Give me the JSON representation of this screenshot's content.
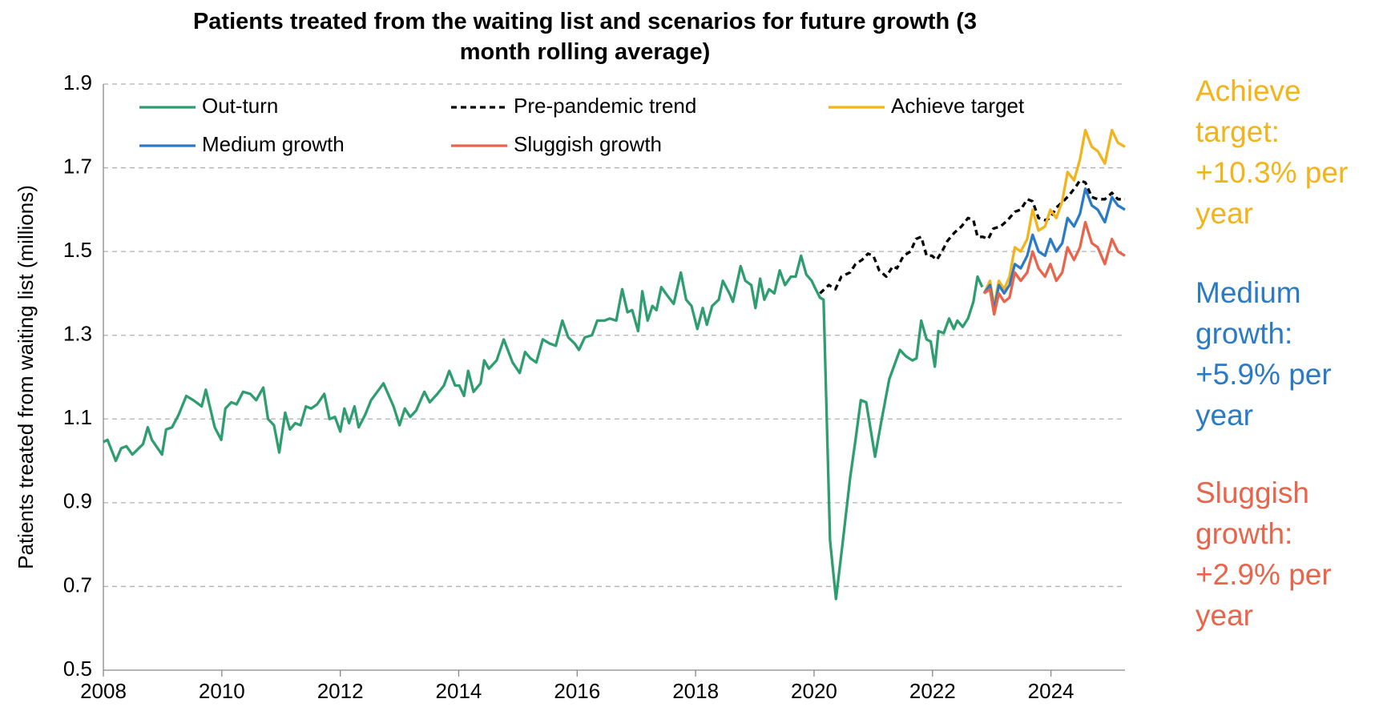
{
  "chart_data": {
    "type": "line",
    "title": "Patients treated from the waiting list and scenarios for future growth (3 month rolling average)",
    "y_label": "Patients treated from waiting list (millions)",
    "xlim": [
      2008,
      2025.25
    ],
    "xticks": [
      2008,
      2010,
      2012,
      2014,
      2016,
      2018,
      2020,
      2022,
      2024
    ],
    "ylim": [
      0.5,
      1.9
    ],
    "yticks": [
      0.5,
      0.7,
      0.9,
      1.1,
      1.3,
      1.5,
      1.7,
      1.9
    ],
    "grid": true,
    "legend": "top-left",
    "series": [
      {
        "name": "Out-turn",
        "color": "#2e9d6f",
        "linestyle": "solid",
        "x": [
          2008.0,
          2008.07,
          2008.21,
          2008.3,
          2008.39,
          2008.49,
          2008.67,
          2008.75,
          2008.82,
          2008.99,
          2009.06,
          2009.16,
          2009.27,
          2009.4,
          2009.52,
          2009.66,
          2009.73,
          2009.88,
          2009.99,
          2010.06,
          2010.16,
          2010.25,
          2010.36,
          2010.48,
          2010.58,
          2010.7,
          2010.78,
          2010.88,
          2010.97,
          2011.07,
          2011.15,
          2011.24,
          2011.33,
          2011.42,
          2011.51,
          2011.61,
          2011.73,
          2011.82,
          2011.91,
          2012.0,
          2012.07,
          2012.15,
          2012.24,
          2012.31,
          2012.42,
          2012.52,
          2012.73,
          2012.9,
          2013.0,
          2013.09,
          2013.18,
          2013.28,
          2013.42,
          2013.51,
          2013.64,
          2013.75,
          2013.84,
          2013.94,
          2014.01,
          2014.09,
          2014.16,
          2014.25,
          2014.37,
          2014.43,
          2014.51,
          2014.64,
          2014.76,
          2014.91,
          2015.03,
          2015.12,
          2015.21,
          2015.31,
          2015.42,
          2015.54,
          2015.64,
          2015.75,
          2015.85,
          2015.96,
          2016.03,
          2016.13,
          2016.25,
          2016.34,
          2016.46,
          2016.55,
          2016.66,
          2016.76,
          2016.85,
          2016.93,
          2017.03,
          2017.1,
          2017.19,
          2017.27,
          2017.34,
          2017.42,
          2017.52,
          2017.63,
          2017.75,
          2017.84,
          2017.93,
          2018.03,
          2018.12,
          2018.19,
          2018.28,
          2018.39,
          2018.46,
          2018.57,
          2018.63,
          2018.76,
          2018.84,
          2018.94,
          2019.01,
          2019.09,
          2019.16,
          2019.24,
          2019.33,
          2019.42,
          2019.51,
          2019.61,
          2019.69,
          2019.78,
          2019.87,
          2019.96,
          2020.01,
          2020.1,
          2020.16,
          2020.27,
          2020.37,
          2020.48,
          2020.61,
          2020.7,
          2020.79,
          2020.88,
          2021.03,
          2021.13,
          2021.27,
          2021.45,
          2021.55,
          2021.66,
          2021.73,
          2021.81,
          2021.9,
          2021.97,
          2022.04,
          2022.1,
          2022.19,
          2022.28,
          2022.36,
          2022.42,
          2022.51,
          2022.6,
          2022.69,
          2022.76,
          2022.84
        ],
        "values": [
          1.045,
          1.05,
          1.0,
          1.03,
          1.035,
          1.015,
          1.04,
          1.08,
          1.05,
          1.015,
          1.075,
          1.08,
          1.11,
          1.155,
          1.145,
          1.13,
          1.17,
          1.08,
          1.05,
          1.125,
          1.14,
          1.135,
          1.165,
          1.16,
          1.145,
          1.175,
          1.1,
          1.085,
          1.02,
          1.115,
          1.075,
          1.09,
          1.085,
          1.13,
          1.125,
          1.135,
          1.16,
          1.1,
          1.105,
          1.07,
          1.125,
          1.09,
          1.13,
          1.08,
          1.11,
          1.145,
          1.185,
          1.13,
          1.085,
          1.125,
          1.105,
          1.12,
          1.165,
          1.14,
          1.16,
          1.18,
          1.215,
          1.18,
          1.18,
          1.155,
          1.215,
          1.165,
          1.185,
          1.24,
          1.22,
          1.24,
          1.29,
          1.235,
          1.21,
          1.26,
          1.245,
          1.235,
          1.29,
          1.28,
          1.275,
          1.335,
          1.295,
          1.28,
          1.265,
          1.295,
          1.3,
          1.335,
          1.335,
          1.34,
          1.335,
          1.41,
          1.355,
          1.36,
          1.31,
          1.405,
          1.335,
          1.37,
          1.36,
          1.415,
          1.395,
          1.375,
          1.45,
          1.385,
          1.37,
          1.315,
          1.365,
          1.325,
          1.37,
          1.385,
          1.43,
          1.4,
          1.38,
          1.465,
          1.43,
          1.42,
          1.365,
          1.435,
          1.385,
          1.41,
          1.4,
          1.455,
          1.42,
          1.44,
          1.44,
          1.49,
          1.445,
          1.43,
          1.415,
          1.39,
          1.385,
          0.81,
          0.67,
          0.8,
          0.96,
          1.05,
          1.145,
          1.14,
          1.01,
          1.09,
          1.195,
          1.265,
          1.25,
          1.24,
          1.245,
          1.335,
          1.29,
          1.285,
          1.225,
          1.31,
          1.305,
          1.34,
          1.315,
          1.335,
          1.32,
          1.34,
          1.38,
          1.44,
          1.415
        ]
      },
      {
        "name": "Pre-pandemic trend",
        "color": "#000000",
        "linestyle": "dashed",
        "x": [
          2020.1,
          2020.25,
          2020.36,
          2020.46,
          2020.61,
          2020.7,
          2020.81,
          2020.91,
          2021.0,
          2021.1,
          2021.22,
          2021.33,
          2021.4,
          2021.51,
          2021.63,
          2021.72,
          2021.81,
          2021.9,
          2021.99,
          2022.07,
          2022.16,
          2022.25,
          2022.37,
          2022.49,
          2022.6,
          2022.69,
          2022.76,
          2022.85,
          2022.94,
          2023.03,
          2023.15,
          2023.27,
          2023.39,
          2023.49,
          2023.6,
          2023.69,
          2023.79,
          2023.9,
          2023.99,
          2024.09,
          2024.21,
          2024.31,
          2024.42,
          2024.49,
          2024.58,
          2024.69,
          2024.79,
          2024.91,
          2025.03,
          2025.13,
          2025.25
        ],
        "values": [
          1.4,
          1.42,
          1.41,
          1.44,
          1.45,
          1.47,
          1.48,
          1.495,
          1.49,
          1.455,
          1.44,
          1.465,
          1.46,
          1.49,
          1.5,
          1.53,
          1.535,
          1.49,
          1.49,
          1.48,
          1.5,
          1.525,
          1.545,
          1.56,
          1.58,
          1.575,
          1.535,
          1.535,
          1.53,
          1.555,
          1.56,
          1.575,
          1.595,
          1.6,
          1.625,
          1.62,
          1.58,
          1.575,
          1.58,
          1.605,
          1.62,
          1.635,
          1.655,
          1.67,
          1.665,
          1.63,
          1.625,
          1.625,
          1.64,
          1.625,
          1.625
        ]
      },
      {
        "name": "Achieve target",
        "color": "#f2b31b",
        "linestyle": "solid",
        "x": [
          2022.87,
          2022.97,
          2023.04,
          2023.12,
          2023.21,
          2023.3,
          2023.39,
          2023.49,
          2023.6,
          2023.69,
          2023.79,
          2023.9,
          2023.99,
          2024.09,
          2024.19,
          2024.28,
          2024.39,
          2024.49,
          2024.58,
          2024.69,
          2024.79,
          2024.91,
          2025.03,
          2025.13,
          2025.25
        ],
        "values": [
          1.4,
          1.43,
          1.37,
          1.43,
          1.41,
          1.44,
          1.51,
          1.5,
          1.53,
          1.6,
          1.55,
          1.56,
          1.6,
          1.58,
          1.62,
          1.69,
          1.67,
          1.72,
          1.79,
          1.75,
          1.74,
          1.71,
          1.79,
          1.76,
          1.75
        ]
      },
      {
        "name": "Medium growth",
        "color": "#2a7ac6",
        "linestyle": "solid",
        "x": [
          2022.87,
          2022.97,
          2023.04,
          2023.12,
          2023.21,
          2023.3,
          2023.39,
          2023.49,
          2023.6,
          2023.69,
          2023.79,
          2023.9,
          2023.99,
          2024.09,
          2024.19,
          2024.28,
          2024.39,
          2024.49,
          2024.58,
          2024.69,
          2024.79,
          2024.91,
          2025.03,
          2025.13,
          2025.25
        ],
        "values": [
          1.4,
          1.42,
          1.36,
          1.42,
          1.4,
          1.42,
          1.47,
          1.46,
          1.49,
          1.54,
          1.5,
          1.49,
          1.53,
          1.5,
          1.52,
          1.58,
          1.56,
          1.59,
          1.65,
          1.61,
          1.6,
          1.57,
          1.63,
          1.61,
          1.6
        ]
      },
      {
        "name": "Sluggish growth",
        "color": "#e8644a",
        "linestyle": "solid",
        "x": [
          2022.87,
          2022.97,
          2023.04,
          2023.12,
          2023.21,
          2023.3,
          2023.39,
          2023.49,
          2023.6,
          2023.69,
          2023.79,
          2023.9,
          2023.99,
          2024.09,
          2024.19,
          2024.28,
          2024.39,
          2024.49,
          2024.58,
          2024.69,
          2024.79,
          2024.91,
          2025.03,
          2025.13,
          2025.25
        ],
        "values": [
          1.4,
          1.41,
          1.35,
          1.4,
          1.38,
          1.39,
          1.45,
          1.43,
          1.45,
          1.5,
          1.46,
          1.44,
          1.47,
          1.43,
          1.45,
          1.51,
          1.48,
          1.51,
          1.57,
          1.52,
          1.51,
          1.47,
          1.53,
          1.5,
          1.49
        ]
      }
    ],
    "annotations": [
      {
        "text": "Achieve target: +10.3% per year",
        "color": "#f2b31b"
      },
      {
        "text": "Medium growth: +5.9% per year",
        "color": "#2a7ac6"
      },
      {
        "text": "Sluggish growth: +2.9% per year",
        "color": "#e8644a"
      }
    ]
  }
}
